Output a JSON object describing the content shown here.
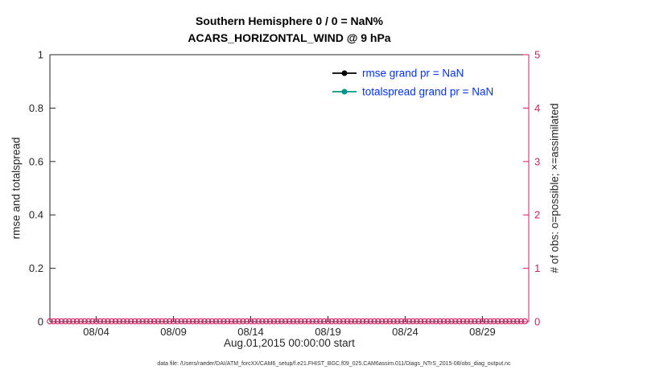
{
  "page": {
    "title_line1": "Southern Hemisphere 0 / 0 = NaN%",
    "title_line2": "ACARS_HORIZONTAL_WIND @ 9 hPa",
    "footer": "data file: /Users/raeder/DAI/ATM_forcXX/CAM6_setup/f.e21.FHIST_BGC.f09_025.CAM6assim.011/Diags_NTrS_2015-08/obs_diag_output.nc"
  },
  "chart_data": {
    "type": "line",
    "title": "Southern Hemisphere 0 / 0 = NaN%",
    "subtitle": "ACARS_HORIZONTAL_WIND @ 9 hPa",
    "xlabel": "Aug.01,2015 00:00:00 start",
    "ylabel_left": "rmse and totalspread",
    "ylabel_right": "# of obs: o=possible; ×=assimilated",
    "grid": false,
    "legend_position": "upper-center",
    "x_domain_days": [
      1,
      32
    ],
    "x_ticks": [
      {
        "day": 4,
        "label": "08/04"
      },
      {
        "day": 9,
        "label": "08/09"
      },
      {
        "day": 14,
        "label": "08/14"
      },
      {
        "day": 19,
        "label": "08/19"
      },
      {
        "day": 24,
        "label": "08/24"
      },
      {
        "day": 29,
        "label": "08/29"
      }
    ],
    "y_left": {
      "range": [
        0,
        1
      ],
      "ticks": [
        {
          "v": 0,
          "label": "0"
        },
        {
          "v": 0.2,
          "label": "0.2"
        },
        {
          "v": 0.4,
          "label": "0.4"
        },
        {
          "v": 0.6,
          "label": "0.6"
        },
        {
          "v": 0.8,
          "label": "0.8"
        },
        {
          "v": 1,
          "label": "1"
        }
      ]
    },
    "y_right": {
      "range": [
        0,
        5
      ],
      "ticks": [
        {
          "v": 0,
          "label": "0"
        },
        {
          "v": 1,
          "label": "1"
        },
        {
          "v": 2,
          "label": "2"
        },
        {
          "v": 3,
          "label": "3"
        },
        {
          "v": 4,
          "label": "4"
        },
        {
          "v": 5,
          "label": "5"
        }
      ]
    },
    "series": [
      {
        "name": "rmse",
        "legend": "rmse grand pr = NaN",
        "color": "#000000",
        "values": []
      },
      {
        "name": "totalspread",
        "legend": "totalspread grand pr = NaN",
        "color": "#009688",
        "values": []
      }
    ],
    "obs_markers": {
      "marker": "o",
      "meaning": "possible observations per time",
      "value": 0,
      "start_day": 1,
      "end_day": 31.75,
      "step_days": 0.25
    },
    "colors": {
      "axis": "#262626",
      "right_axis": "#d81b60",
      "legend_text": "#0033ff"
    }
  }
}
